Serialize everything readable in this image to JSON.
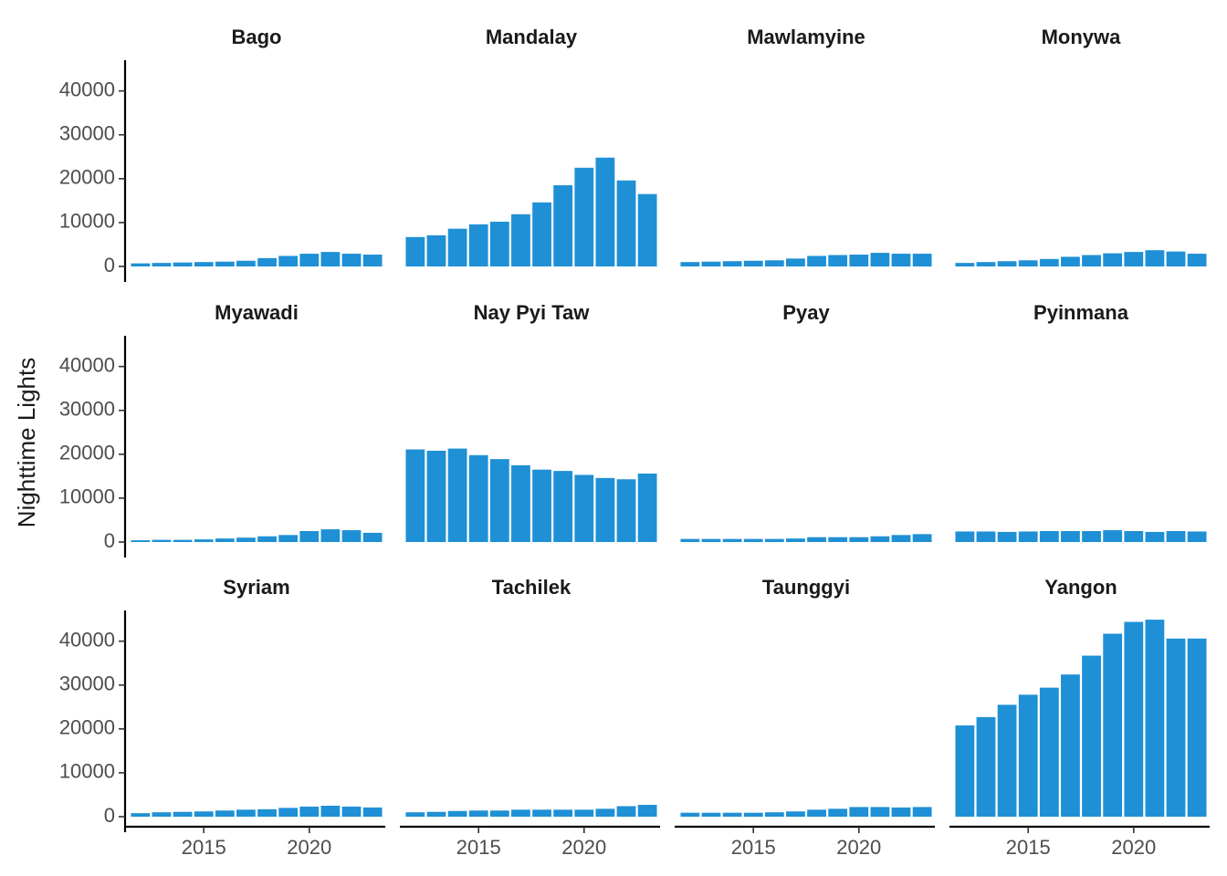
{
  "chart_data": {
    "type": "bar",
    "title": "",
    "xlabel": "",
    "ylabel": "Nighttime Lights",
    "bar_color": "#1f90d5",
    "x": [
      2012,
      2013,
      2014,
      2015,
      2016,
      2017,
      2018,
      2019,
      2020,
      2021,
      2022,
      2023
    ],
    "xlim": [
      2011.4,
      2023.6
    ],
    "xticks": [
      2015,
      2020
    ],
    "ylim": [
      0,
      47000
    ],
    "yticks": [
      0,
      10000,
      20000,
      30000,
      40000
    ],
    "grid": false,
    "legend": "none",
    "layout": {
      "rows": 3,
      "cols": 4
    },
    "facets": [
      {
        "name": "Bago",
        "values": [
          700,
          800,
          900,
          1000,
          1100,
          1300,
          1900,
          2400,
          2900,
          3300,
          2900,
          2700
        ]
      },
      {
        "name": "Mandalay",
        "values": [
          6700,
          7100,
          8600,
          9600,
          10200,
          11900,
          14600,
          18500,
          22500,
          24800,
          19600,
          16500
        ]
      },
      {
        "name": "Mawlamyine",
        "values": [
          1000,
          1100,
          1200,
          1300,
          1400,
          1800,
          2400,
          2600,
          2700,
          3100,
          2900,
          2900
        ]
      },
      {
        "name": "Monywa",
        "values": [
          800,
          1000,
          1200,
          1400,
          1700,
          2200,
          2600,
          3000,
          3300,
          3700,
          3400,
          2900
        ]
      },
      {
        "name": "Myawadi",
        "values": [
          400,
          500,
          500,
          600,
          800,
          1000,
          1300,
          1600,
          2500,
          2900,
          2700,
          2100
        ]
      },
      {
        "name": "Nay Pyi Taw",
        "values": [
          21100,
          20800,
          21300,
          19800,
          18900,
          17500,
          16500,
          16200,
          15300,
          14600,
          14300,
          15600
        ]
      },
      {
        "name": "Pyay",
        "values": [
          700,
          700,
          700,
          700,
          700,
          800,
          1100,
          1100,
          1100,
          1300,
          1600,
          1800
        ]
      },
      {
        "name": "Pyinmana",
        "values": [
          2400,
          2400,
          2300,
          2400,
          2500,
          2500,
          2500,
          2700,
          2500,
          2300,
          2500,
          2400
        ]
      },
      {
        "name": "Syriam",
        "values": [
          800,
          1000,
          1100,
          1200,
          1400,
          1600,
          1700,
          2000,
          2300,
          2500,
          2300,
          2100
        ]
      },
      {
        "name": "Tachilek",
        "values": [
          1000,
          1100,
          1300,
          1400,
          1400,
          1600,
          1600,
          1600,
          1600,
          1800,
          2400,
          2700
        ]
      },
      {
        "name": "Taunggyi",
        "values": [
          900,
          900,
          900,
          900,
          1000,
          1200,
          1600,
          1800,
          2200,
          2200,
          2100,
          2200
        ]
      },
      {
        "name": "Yangon",
        "values": [
          20800,
          22700,
          25500,
          27800,
          29400,
          32400,
          36700,
          41700,
          44400,
          44900,
          40600,
          40600
        ]
      }
    ]
  }
}
